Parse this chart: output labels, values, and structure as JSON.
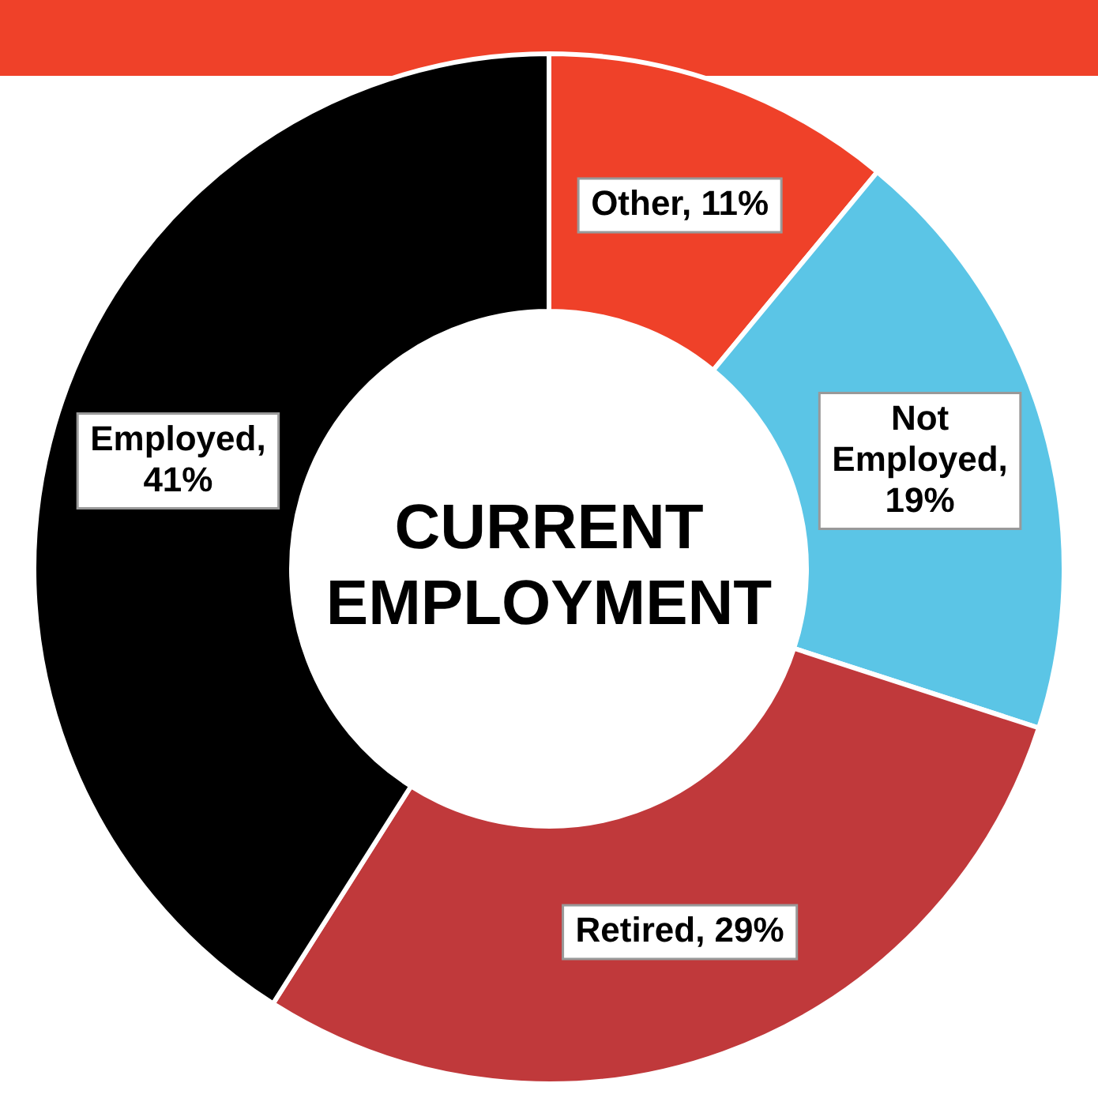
{
  "chart_data": {
    "type": "donut",
    "title": "CURRENT EMPLOYMENT",
    "categories": [
      "Other",
      "Not Employed",
      "Retired",
      "Employed"
    ],
    "values": [
      11,
      19,
      29,
      41
    ],
    "colors": [
      "#ef4129",
      "#5bc5e6",
      "#c0393b",
      "#000000"
    ],
    "value_labels": [
      ", 11%",
      ", 19%",
      ", 29%",
      ", 41%"
    ],
    "legend": false
  }
}
